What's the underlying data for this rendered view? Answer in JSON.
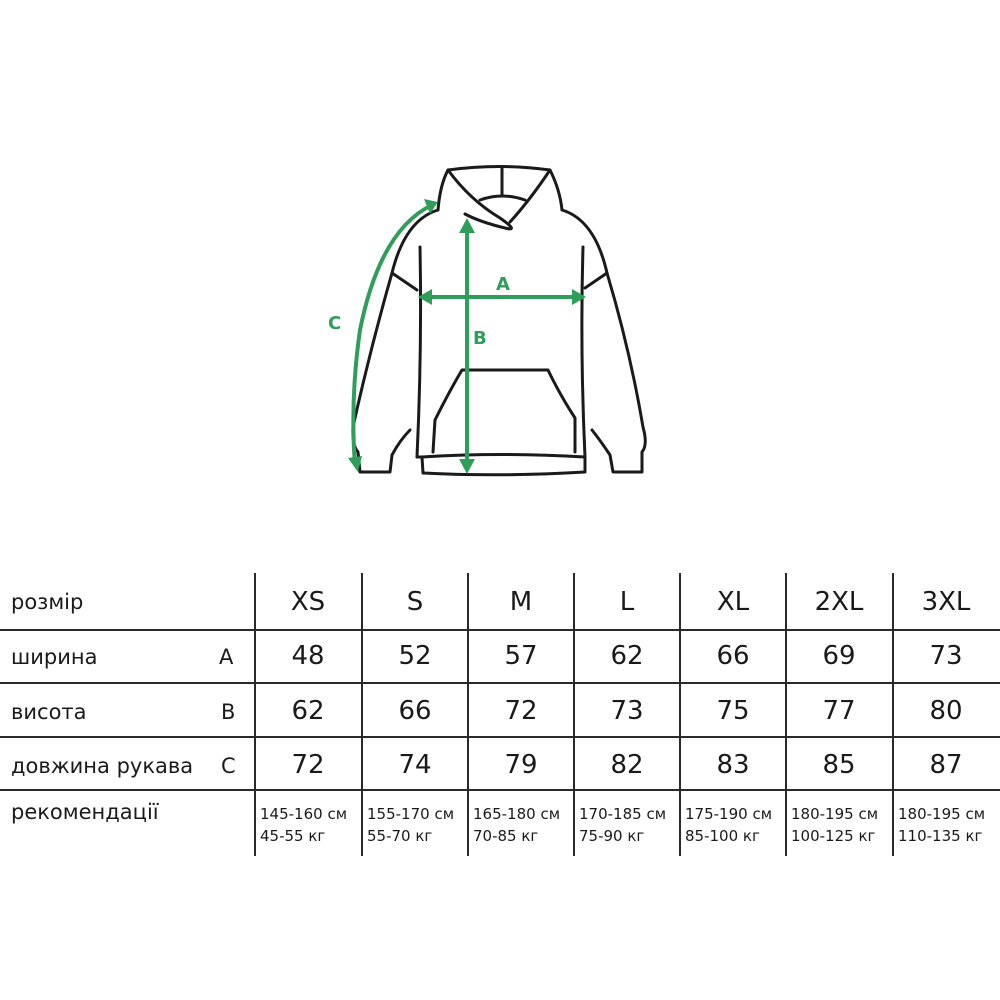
{
  "colors": {
    "accent": "#2e9e5a",
    "line": "#1a1a1a"
  },
  "diagram": {
    "labels": {
      "a": "A",
      "b": "B",
      "c": "C"
    }
  },
  "table": {
    "row_labels": [
      "розмір",
      "ширина",
      "висота",
      "довжина рукава",
      "рекомендації"
    ],
    "row_letters": [
      "A",
      "B",
      "C"
    ],
    "sizes": [
      "XS",
      "S",
      "M",
      "L",
      "XL",
      "2XL",
      "3XL"
    ],
    "width": [
      "48",
      "52",
      "57",
      "62",
      "66",
      "69",
      "73"
    ],
    "height": [
      "62",
      "66",
      "72",
      "73",
      "75",
      "77",
      "80"
    ],
    "sleeve": [
      "72",
      "74",
      "79",
      "82",
      "83",
      "85",
      "87"
    ],
    "recommend_height": [
      "145-160 см",
      "155-170 см",
      "165-180 см",
      "170-185 см",
      "175-190 см",
      "180-195 см",
      "180-195 см"
    ],
    "recommend_weight": [
      "45-55 кг",
      "55-70 кг",
      "70-85 кг",
      "75-90 кг",
      "85-100 кг",
      "100-125 кг",
      "110-135 кг"
    ]
  }
}
